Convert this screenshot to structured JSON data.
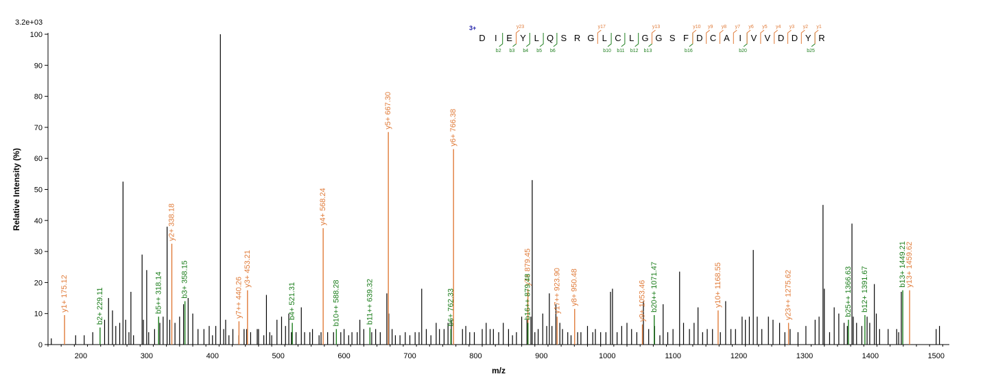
{
  "chart_data": {
    "type": "bar",
    "title": "",
    "xlabel": "m/z",
    "ylabel": "Relative  Intensity (%)",
    "scale_label": "3.2e+03",
    "xlim": [
      150,
      1520
    ],
    "ylim": [
      0,
      100
    ],
    "xticks": [
      200,
      300,
      400,
      500,
      600,
      700,
      800,
      900,
      1000,
      1100,
      1200,
      1300,
      1400,
      1500
    ],
    "yticks": [
      0,
      10,
      20,
      30,
      40,
      50,
      60,
      70,
      80,
      90,
      100
    ],
    "colors": {
      "unassigned": "#000000",
      "y_ion": "#e07b39",
      "b_ion": "#1b7d1b",
      "charge": "#1f1fa8"
    },
    "unassigned_peaks": [
      [
        155,
        2
      ],
      [
        192,
        3
      ],
      [
        205,
        3
      ],
      [
        218,
        4
      ],
      [
        236,
        8
      ],
      [
        242,
        15
      ],
      [
        248,
        11
      ],
      [
        253,
        6
      ],
      [
        259,
        7
      ],
      [
        264,
        52.5
      ],
      [
        268,
        8
      ],
      [
        273,
        4
      ],
      [
        276,
        17
      ],
      [
        280,
        3
      ],
      [
        293,
        29
      ],
      [
        295,
        8
      ],
      [
        300,
        24
      ],
      [
        303,
        4
      ],
      [
        312,
        5
      ],
      [
        320,
        7
      ],
      [
        325,
        9
      ],
      [
        331,
        38
      ],
      [
        335,
        8
      ],
      [
        343,
        7
      ],
      [
        350,
        9
      ],
      [
        356,
        13
      ],
      [
        363,
        15
      ],
      [
        370,
        10
      ],
      [
        378,
        5
      ],
      [
        387,
        5
      ],
      [
        395,
        6
      ],
      [
        400,
        3
      ],
      [
        405,
        6
      ],
      [
        412,
        100
      ],
      [
        417,
        5
      ],
      [
        420,
        8
      ],
      [
        425,
        3
      ],
      [
        431,
        5
      ],
      [
        440,
        3
      ],
      [
        448,
        5
      ],
      [
        452,
        5
      ],
      [
        458,
        4
      ],
      [
        468,
        5
      ],
      [
        470,
        5
      ],
      [
        478,
        3
      ],
      [
        482,
        16
      ],
      [
        487,
        4
      ],
      [
        490,
        3
      ],
      [
        498,
        8
      ],
      [
        505,
        9
      ],
      [
        511,
        6
      ],
      [
        516,
        10
      ],
      [
        520,
        4
      ],
      [
        527,
        4
      ],
      [
        535,
        12
      ],
      [
        540,
        4
      ],
      [
        548,
        4
      ],
      [
        552,
        5
      ],
      [
        562,
        3
      ],
      [
        565,
        4
      ],
      [
        575,
        4
      ],
      [
        584,
        4
      ],
      [
        595,
        4
      ],
      [
        600,
        5
      ],
      [
        607,
        3
      ],
      [
        612,
        4
      ],
      [
        620,
        4
      ],
      [
        624,
        8
      ],
      [
        630,
        5
      ],
      [
        642,
        4
      ],
      [
        648,
        5
      ],
      [
        655,
        4
      ],
      [
        665,
        16.5
      ],
      [
        668,
        10
      ],
      [
        673,
        5
      ],
      [
        678,
        3
      ],
      [
        685,
        3
      ],
      [
        693,
        4
      ],
      [
        700,
        3
      ],
      [
        708,
        4
      ],
      [
        714,
        4
      ],
      [
        718,
        18
      ],
      [
        725,
        5
      ],
      [
        732,
        3
      ],
      [
        740,
        7
      ],
      [
        745,
        5
      ],
      [
        752,
        5
      ],
      [
        758,
        7
      ],
      [
        763,
        8
      ],
      [
        780,
        5
      ],
      [
        785,
        6
      ],
      [
        791,
        4
      ],
      [
        798,
        4
      ],
      [
        810,
        5
      ],
      [
        816,
        7
      ],
      [
        822,
        5
      ],
      [
        827,
        5
      ],
      [
        835,
        4
      ],
      [
        842,
        7
      ],
      [
        850,
        5
      ],
      [
        856,
        3
      ],
      [
        862,
        4
      ],
      [
        870,
        9
      ],
      [
        878,
        8
      ],
      [
        884,
        9
      ],
      [
        886,
        53
      ],
      [
        890,
        4
      ],
      [
        895,
        5
      ],
      [
        902,
        10
      ],
      [
        908,
        6
      ],
      [
        912,
        16.5
      ],
      [
        916,
        6
      ],
      [
        922,
        13
      ],
      [
        928,
        7
      ],
      [
        932,
        5
      ],
      [
        940,
        4
      ],
      [
        945,
        3
      ],
      [
        955,
        4
      ],
      [
        960,
        4
      ],
      [
        970,
        6
      ],
      [
        978,
        4
      ],
      [
        982,
        5
      ],
      [
        990,
        4
      ],
      [
        998,
        4
      ],
      [
        1005,
        17
      ],
      [
        1008,
        18
      ],
      [
        1015,
        4
      ],
      [
        1022,
        6
      ],
      [
        1030,
        7
      ],
      [
        1037,
        5
      ],
      [
        1045,
        4
      ],
      [
        1055,
        14
      ],
      [
        1063,
        5
      ],
      [
        1072,
        6
      ],
      [
        1080,
        3
      ],
      [
        1085,
        13
      ],
      [
        1092,
        4
      ],
      [
        1100,
        5
      ],
      [
        1110,
        23.5
      ],
      [
        1116,
        7
      ],
      [
        1125,
        5
      ],
      [
        1132,
        7
      ],
      [
        1138,
        12
      ],
      [
        1145,
        4
      ],
      [
        1152,
        5
      ],
      [
        1160,
        5
      ],
      [
        1172,
        4
      ],
      [
        1180,
        14
      ],
      [
        1188,
        5
      ],
      [
        1195,
        5
      ],
      [
        1205,
        9
      ],
      [
        1210,
        8
      ],
      [
        1216,
        9
      ],
      [
        1222,
        30.5
      ],
      [
        1228,
        9
      ],
      [
        1235,
        5
      ],
      [
        1245,
        9
      ],
      [
        1252,
        8
      ],
      [
        1262,
        7
      ],
      [
        1270,
        4
      ],
      [
        1278,
        5
      ],
      [
        1290,
        4
      ],
      [
        1302,
        6
      ],
      [
        1316,
        8
      ],
      [
        1322,
        9
      ],
      [
        1328,
        45
      ],
      [
        1330,
        18
      ],
      [
        1338,
        4
      ],
      [
        1345,
        12
      ],
      [
        1352,
        10
      ],
      [
        1360,
        7
      ],
      [
        1365,
        6
      ],
      [
        1372,
        39
      ],
      [
        1374,
        9
      ],
      [
        1379,
        7
      ],
      [
        1387,
        6
      ],
      [
        1395,
        9
      ],
      [
        1399,
        7
      ],
      [
        1406,
        19.5
      ],
      [
        1409,
        10
      ],
      [
        1414,
        5
      ],
      [
        1427,
        5
      ],
      [
        1440,
        5
      ],
      [
        1443,
        4
      ],
      [
        1447,
        17
      ],
      [
        1500,
        5
      ],
      [
        1505,
        6
      ]
    ],
    "y_ions": [
      {
        "label": "y1+ 175.12",
        "mz": 175.12,
        "intensity": 9.5
      },
      {
        "label": "y2+ 338.18",
        "mz": 338.18,
        "intensity": 32.5
      },
      {
        "label": "y3+ 453.21",
        "mz": 453.21,
        "intensity": 17.5
      },
      {
        "label": "y7++ 440.26",
        "mz": 440.26,
        "intensity": 7.5
      },
      {
        "label": "y4+ 568.24",
        "mz": 568.24,
        "intensity": 37.5
      },
      {
        "label": "y5+ 667.30",
        "mz": 667.3,
        "intensity": 68.5
      },
      {
        "label": "y6+ 766.38",
        "mz": 766.38,
        "intensity": 63
      },
      {
        "label": "y7+ 879.45",
        "mz": 879.45,
        "intensity": 18
      },
      {
        "label": "y17++ 923.90",
        "mz": 923.9,
        "intensity": 9
      },
      {
        "label": "y8+ 950.48",
        "mz": 950.48,
        "intensity": 11.5
      },
      {
        "label": "y9+ 1053.46",
        "mz": 1053.46,
        "intensity": 6.5
      },
      {
        "label": "y10+ 1168.55",
        "mz": 1168.55,
        "intensity": 11
      },
      {
        "label": "y23++ 1275.62",
        "mz": 1275.62,
        "intensity": 7
      },
      {
        "label": "y13+ 1459.62",
        "mz": 1459.62,
        "intensity": 17.5
      }
    ],
    "b_ions": [
      {
        "label": "b2+ 229.11",
        "mz": 229.11,
        "intensity": 5.5
      },
      {
        "label": "b5++ 318.14",
        "mz": 318.14,
        "intensity": 9
      },
      {
        "label": "b3+ 358.15",
        "mz": 358.15,
        "intensity": 14
      },
      {
        "label": "b4+ 521.31",
        "mz": 521.31,
        "intensity": 7
      },
      {
        "label": "b10++ 588.28",
        "mz": 588.28,
        "intensity": 5
      },
      {
        "label": "b11++ 639.32",
        "mz": 639.32,
        "intensity": 5.5
      },
      {
        "label": "b6+ 762.33",
        "mz": 762.33,
        "intensity": 5
      },
      {
        "label": "b16++ 879.48",
        "mz": 879.48,
        "intensity": 7
      },
      {
        "label": "b20++ 1071.47",
        "mz": 1071.47,
        "intensity": 9.5
      },
      {
        "label": "b25++ 1366.63",
        "mz": 1366.63,
        "intensity": 8
      },
      {
        "label": "b12+ 1391.67",
        "mz": 1391.67,
        "intensity": 9.5
      },
      {
        "label": "b13+ 1449.21",
        "mz": 1449.21,
        "intensity": 17.5
      }
    ],
    "sequence": {
      "charge": "3+",
      "residues": [
        "D",
        "I",
        "E",
        "Y",
        "L",
        "Q",
        "S",
        "R",
        "G",
        "L",
        "C",
        "L",
        "G",
        "G",
        "S",
        "F",
        "D",
        "C",
        "A",
        "I",
        "V",
        "V",
        "D",
        "D",
        "Y",
        "R"
      ],
      "b_marks": [
        {
          "after": 2,
          "label": "b2"
        },
        {
          "after": 3,
          "label": "b3"
        },
        {
          "after": 4,
          "label": "b4"
        },
        {
          "after": 5,
          "label": "b5"
        },
        {
          "after": 6,
          "label": "b6"
        },
        {
          "after": 10,
          "label": "b10"
        },
        {
          "after": 11,
          "label": "b11"
        },
        {
          "after": 12,
          "label": "b12"
        },
        {
          "after": 13,
          "label": "b13"
        },
        {
          "after": 16,
          "label": "b16"
        },
        {
          "after": 20,
          "label": "b20"
        },
        {
          "after": 25,
          "label": "b25"
        }
      ],
      "y_marks": [
        {
          "before": 4,
          "label": "y23"
        },
        {
          "before": 10,
          "label": "y17"
        },
        {
          "before": 14,
          "label": "y13"
        },
        {
          "before": 17,
          "label": "y10"
        },
        {
          "before": 18,
          "label": "y9"
        },
        {
          "before": 19,
          "label": "y8"
        },
        {
          "before": 20,
          "label": "y7"
        },
        {
          "before": 21,
          "label": "y6"
        },
        {
          "before": 22,
          "label": "y5"
        },
        {
          "before": 23,
          "label": "y4"
        },
        {
          "before": 24,
          "label": "y3"
        },
        {
          "before": 25,
          "label": "y2"
        },
        {
          "before": 26,
          "label": "y1"
        }
      ]
    }
  }
}
